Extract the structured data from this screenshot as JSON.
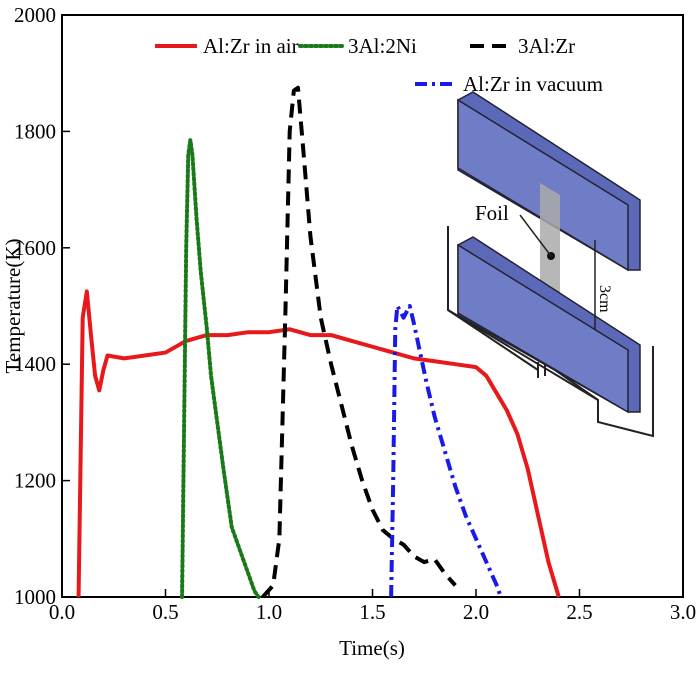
{
  "chart_data": {
    "type": "line",
    "xlabel": "Time(s)",
    "ylabel": "Temperature(K)",
    "xlim": [
      0,
      3
    ],
    "ylim": [
      1000,
      2000
    ],
    "xticks": [
      {
        "value": 0,
        "label": "0.0"
      },
      0.5,
      {
        "value": 1,
        "label": "1.0"
      },
      1.5,
      {
        "value": 2,
        "label": "2.0"
      },
      2.5,
      {
        "value": 3,
        "label": "3.0"
      }
    ],
    "yticks": [
      1000,
      1200,
      1400,
      1600,
      1800,
      2000
    ],
    "legend": "top",
    "annotations": [
      "Foil",
      "3cm"
    ],
    "series": [
      {
        "name": "Al:Zr in air",
        "color": "#e8191b",
        "dash": "solid",
        "x": [
          0.08,
          0.1,
          0.12,
          0.14,
          0.16,
          0.18,
          0.2,
          0.22,
          0.3,
          0.4,
          0.5,
          0.6,
          0.7,
          0.8,
          0.9,
          1.0,
          1.1,
          1.2,
          1.3,
          1.4,
          1.5,
          1.6,
          1.7,
          1.8,
          1.9,
          2.0,
          2.05,
          2.1,
          2.15,
          2.2,
          2.25,
          2.3,
          2.35,
          2.4
        ],
        "values": [
          1000,
          1480,
          1525,
          1450,
          1380,
          1355,
          1390,
          1415,
          1410,
          1415,
          1420,
          1440,
          1450,
          1450,
          1455,
          1455,
          1460,
          1450,
          1450,
          1440,
          1430,
          1420,
          1410,
          1405,
          1400,
          1395,
          1380,
          1350,
          1320,
          1280,
          1220,
          1140,
          1060,
          1000
        ]
      },
      {
        "name": "3Al:2Ni",
        "color": "#1a7a1a",
        "dash": "dotted",
        "x": [
          0.58,
          0.59,
          0.6,
          0.61,
          0.62,
          0.63,
          0.65,
          0.67,
          0.7,
          0.72,
          0.75,
          0.78,
          0.8,
          0.82,
          0.85,
          0.88,
          0.9,
          0.93,
          0.95
        ],
        "values": [
          1000,
          1300,
          1600,
          1760,
          1785,
          1760,
          1650,
          1560,
          1460,
          1380,
          1300,
          1220,
          1170,
          1120,
          1090,
          1060,
          1040,
          1010,
          1000
        ]
      },
      {
        "name": "3Al:Zr",
        "color": "#000000",
        "dash": "dashed",
        "x": [
          0.97,
          1.02,
          1.05,
          1.08,
          1.1,
          1.12,
          1.14,
          1.17,
          1.2,
          1.25,
          1.3,
          1.35,
          1.4,
          1.45,
          1.5,
          1.55,
          1.6,
          1.65,
          1.7,
          1.75,
          1.8,
          1.85,
          1.9
        ],
        "values": [
          1000,
          1020,
          1100,
          1500,
          1800,
          1870,
          1875,
          1750,
          1620,
          1480,
          1400,
          1330,
          1260,
          1200,
          1150,
          1115,
          1100,
          1090,
          1070,
          1060,
          1065,
          1040,
          1020
        ]
      },
      {
        "name": "Al:Zr in vacuum",
        "color": "#1a1ae8",
        "dash": "dashdot",
        "x": [
          1.59,
          1.6,
          1.61,
          1.62,
          1.65,
          1.68,
          1.7,
          1.73,
          1.76,
          1.8,
          1.85,
          1.9,
          1.95,
          2.0,
          2.05,
          2.1,
          2.12
        ],
        "values": [
          1000,
          1200,
          1460,
          1500,
          1480,
          1500,
          1470,
          1420,
          1370,
          1310,
          1250,
          1190,
          1140,
          1100,
          1060,
          1020,
          1000
        ]
      }
    ]
  }
}
